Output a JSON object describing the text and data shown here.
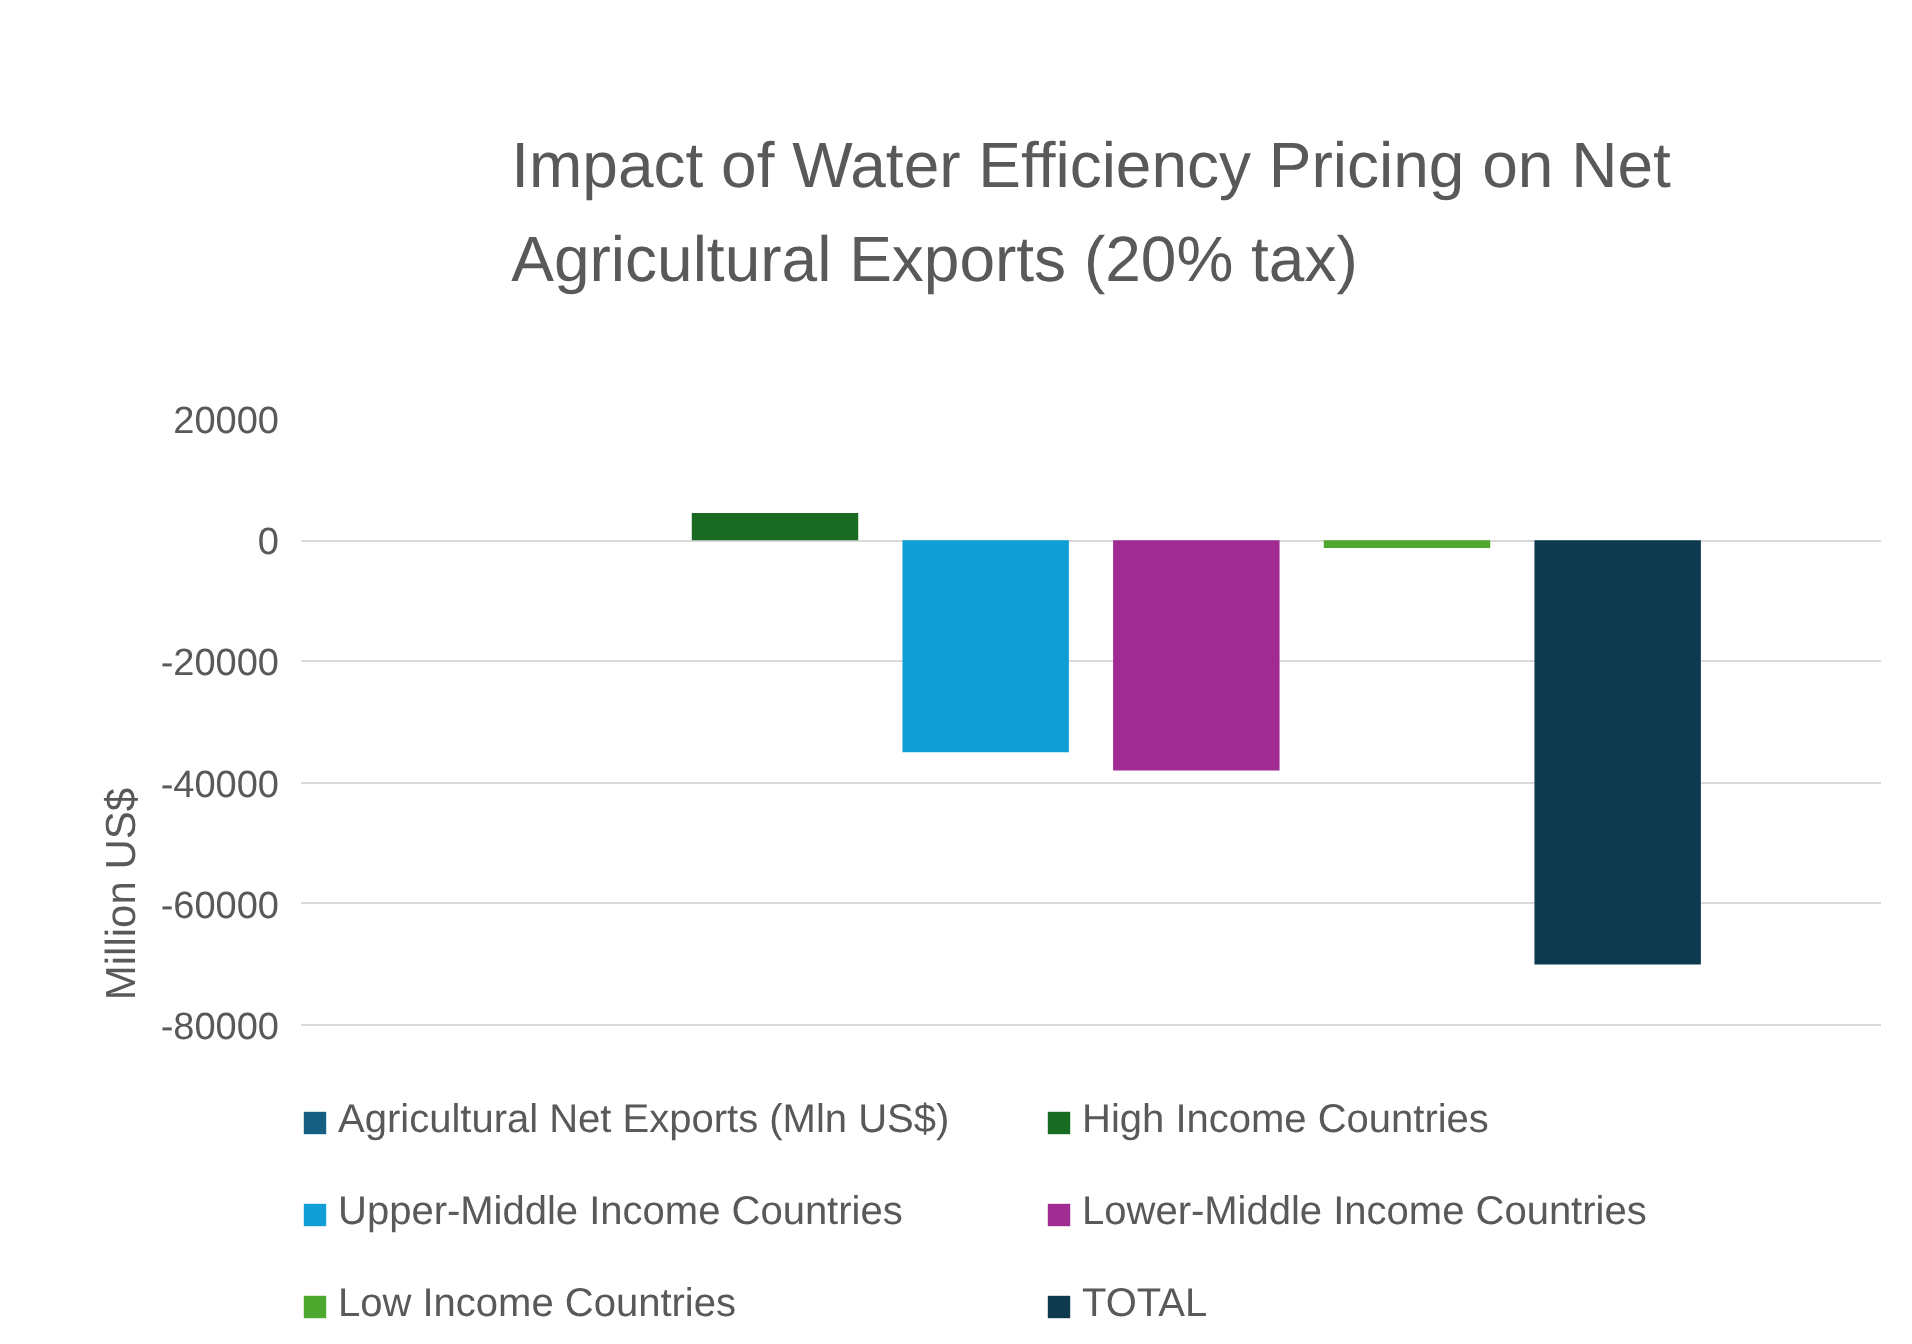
{
  "chart_data": {
    "type": "bar",
    "title": "Impact of Water Efficiency Pricing on Net Agricultural Exports (20% tax)",
    "ylabel": "Million US$",
    "categories": [
      null
    ],
    "series": [
      {
        "name": "Agricultural Net Exports (Mln US$)",
        "color": "#156082",
        "values": [
          0
        ]
      },
      {
        "name": "High Income Countries",
        "color": "#196b24",
        "values": [
          4500
        ]
      },
      {
        "name": "Upper-Middle Income Countries",
        "color": "#0f9ed5",
        "values": [
          -35000
        ]
      },
      {
        "name": "Lower-Middle Income Countries",
        "color": "#a02b93",
        "values": [
          -38000
        ]
      },
      {
        "name": "Low Income Countries",
        "color": "#4ea72e",
        "values": [
          -1300
        ]
      },
      {
        "name": "TOTAL",
        "color": "#0e3a4f",
        "values": [
          -70000
        ]
      }
    ],
    "ylim": [
      -80000,
      20000
    ],
    "yticks": [
      -80000,
      -60000,
      -40000,
      -20000,
      0,
      20000
    ],
    "grid": "y",
    "legend": "bottom",
    "tick_labels": "y"
  }
}
